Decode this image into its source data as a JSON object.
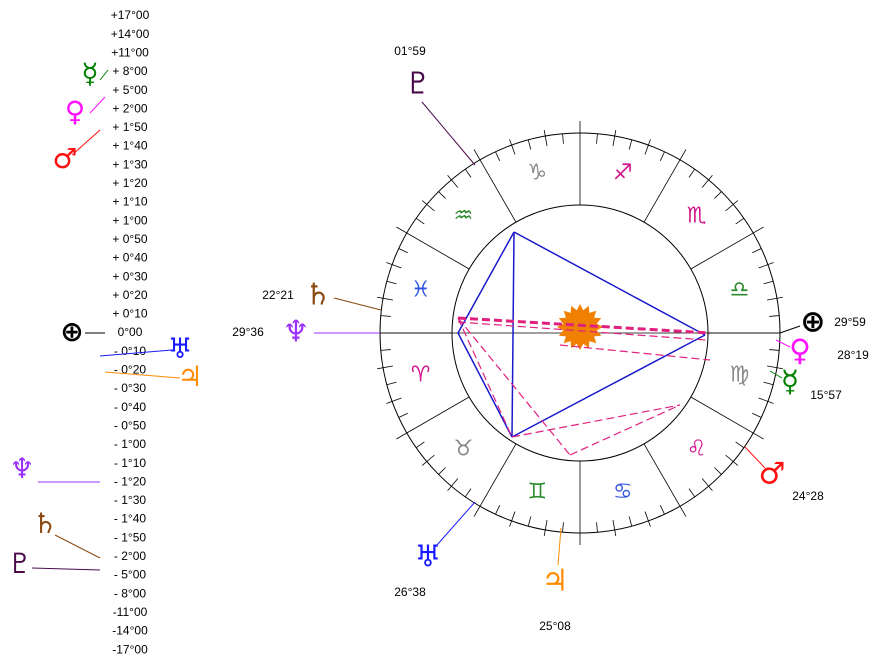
{
  "scale": {
    "labels": [
      "+17°00",
      "+14°00",
      "+11°00",
      "+ 8°00",
      "+ 5°00",
      "+ 2°00",
      "+ 1°50",
      "+ 1°40",
      "+ 1°30",
      "+ 1°20",
      "+ 1°10",
      "+ 1°00",
      "+ 0°50",
      "+ 0°40",
      "+ 0°30",
      "+ 0°20",
      "+ 0°10",
      "0°00",
      "- 0°10",
      "- 0°20",
      "- 0°30",
      "- 0°40",
      "- 0°50",
      "- 1°00",
      "- 1°10",
      "- 1°20",
      "- 1°30",
      "- 1°40",
      "- 1°50",
      "- 2°00",
      "- 5°00",
      "- 8°00",
      "-11°00",
      "-14°00",
      "-17°00"
    ]
  },
  "wheel": {
    "signs": [
      "♎",
      "♏",
      "♐",
      "♑",
      "♒",
      "♓",
      "♈",
      "♉",
      "♊",
      "♋",
      "♌",
      "♍"
    ]
  },
  "planets": [
    {
      "glyph": "♇",
      "label": "01°59"
    },
    {
      "glyph": "♄",
      "label": "22°21"
    },
    {
      "glyph": "♆",
      "label": "29°36"
    },
    {
      "glyph": "⊕",
      "label": "29°59"
    },
    {
      "glyph": "♀",
      "label": "28°19"
    },
    {
      "glyph": "☿",
      "label": "15°57"
    },
    {
      "glyph": "♂",
      "label": "24°28"
    },
    {
      "glyph": "♃",
      "label": "25°08"
    },
    {
      "glyph": "♅",
      "label": "26°38"
    }
  ]
}
